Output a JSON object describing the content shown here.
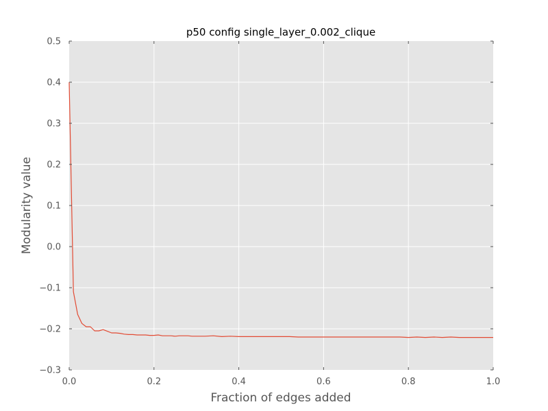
{
  "chart_data": {
    "type": "line",
    "title": "p50 config single_layer_0.002_clique",
    "xlabel": "Fraction of edges added",
    "ylabel": "Modularity value",
    "xlim": [
      0.0,
      1.0
    ],
    "ylim": [
      -0.3,
      0.5
    ],
    "x_ticks": [
      "0.0",
      "0.2",
      "0.4",
      "0.6",
      "0.8",
      "1.0"
    ],
    "y_ticks": [
      "0.5",
      "0.4",
      "0.3",
      "0.2",
      "0.1",
      "0.0",
      "−0.1",
      "−0.2",
      "−0.3"
    ],
    "grid": true,
    "background_color": "#e5e5e5",
    "grid_color": "#ffffff",
    "line_color": "#e24a33",
    "series": [
      {
        "x": [
          0.0,
          0.01,
          0.02,
          0.03,
          0.04,
          0.05,
          0.06,
          0.07,
          0.08,
          0.09,
          0.1,
          0.11,
          0.12,
          0.13,
          0.14,
          0.15,
          0.16,
          0.17,
          0.18,
          0.19,
          0.2,
          0.21,
          0.22,
          0.23,
          0.24,
          0.25,
          0.26,
          0.27,
          0.28,
          0.29,
          0.3,
          0.32,
          0.34,
          0.36,
          0.38,
          0.4,
          0.42,
          0.44,
          0.46,
          0.48,
          0.5,
          0.52,
          0.54,
          0.56,
          0.58,
          0.6,
          0.62,
          0.64,
          0.66,
          0.68,
          0.7,
          0.72,
          0.74,
          0.76,
          0.78,
          0.8,
          0.82,
          0.84,
          0.86,
          0.88,
          0.9,
          0.92,
          0.94,
          0.96,
          0.98,
          1.0
        ],
        "y": [
          0.4,
          -0.11,
          -0.165,
          -0.187,
          -0.195,
          -0.195,
          -0.205,
          -0.205,
          -0.202,
          -0.206,
          -0.21,
          -0.21,
          -0.211,
          -0.213,
          -0.214,
          -0.214,
          -0.215,
          -0.215,
          -0.215,
          -0.216,
          -0.216,
          -0.215,
          -0.217,
          -0.217,
          -0.217,
          -0.218,
          -0.217,
          -0.217,
          -0.217,
          -0.218,
          -0.218,
          -0.218,
          -0.217,
          -0.219,
          -0.218,
          -0.219,
          -0.219,
          -0.219,
          -0.219,
          -0.219,
          -0.219,
          -0.219,
          -0.22,
          -0.22,
          -0.22,
          -0.22,
          -0.22,
          -0.22,
          -0.22,
          -0.22,
          -0.22,
          -0.22,
          -0.22,
          -0.22,
          -0.22,
          -0.221,
          -0.22,
          -0.221,
          -0.22,
          -0.221,
          -0.22,
          -0.221,
          -0.221,
          -0.221,
          -0.221,
          -0.221
        ]
      }
    ]
  }
}
